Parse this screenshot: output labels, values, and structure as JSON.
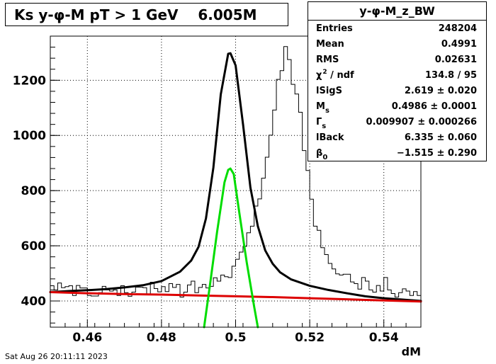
{
  "header": {
    "title": "Ks y-φ-M pT > 1 GeV    6.005M"
  },
  "stats": {
    "title": "y-φ-M_z_BW",
    "rows": [
      {
        "label": "Entries",
        "value": "248204"
      },
      {
        "label": "Mean",
        "value": "0.4991"
      },
      {
        "label": "RMS",
        "value": "0.02631"
      },
      {
        "label": "χ",
        "sup": "2",
        "label_rest": " / ndf",
        "value": "134.8 / 95"
      },
      {
        "label": "lSigS",
        "value": "2.619 ± 0.020"
      },
      {
        "label": "M",
        "sub": "s",
        "value": "0.4986 ± 0.0001"
      },
      {
        "label": "Γ",
        "sub": "s",
        "value": "0.009907 ± 0.000266"
      },
      {
        "label": "lBack",
        "value": "6.335 ± 0.060"
      },
      {
        "label": "β",
        "sub": "0",
        "value": "−1.515 ± 0.290"
      }
    ]
  },
  "footer": {
    "timestamp": "Sat Aug 26 20:11:11 2023"
  },
  "chart_data": {
    "type": "line",
    "xlabel": "dM",
    "ylabel": "",
    "xlim": [
      0.45,
      0.55
    ],
    "ylim": [
      305,
      1360
    ],
    "grid": true,
    "xticks": [
      0.46,
      0.48,
      0.5,
      0.52,
      0.54
    ],
    "xtick_labels": [
      "0.46",
      "0.48",
      "0.5",
      "0.52",
      "0.54"
    ],
    "yticks": [
      400,
      600,
      800,
      1000,
      1200
    ],
    "ytick_labels": [
      "400",
      "600",
      "800",
      "1000",
      "1200"
    ],
    "histogram": {
      "name": "y-φ-M_z_BW",
      "color": "#000000",
      "bin_lo": 0.45,
      "bin_width": 0.001,
      "values": [
        455,
        440,
        465,
        448,
        452,
        455,
        420,
        456,
        447,
        447,
        420,
        418,
        418,
        430,
        453,
        440,
        436,
        440,
        420,
        455,
        430,
        417,
        432,
        450,
        450,
        448,
        422,
        468,
        445,
        433,
        452,
        434,
        463,
        449,
        460,
        414,
        432,
        458,
        472,
        430,
        449,
        460,
        447,
        453,
        484,
        472,
        494,
        488,
        485,
        526,
        551,
        577,
        598,
        647,
        671,
        744,
        770,
        845,
        921,
        1001,
        1092,
        1203,
        1235,
        1322,
        1275,
        1185,
        1150,
        1084,
        945,
        873,
        769,
        671,
        656,
        593,
        568,
        536,
        516,
        498,
        494,
        497,
        497,
        469,
        463,
        443,
        485,
        472,
        440,
        432,
        456,
        436,
        485,
        440,
        427,
        414,
        430,
        444,
        436,
        420,
        434,
        420
      ]
    },
    "series": [
      {
        "role": "total-fit",
        "color": "#000000",
        "x": [
          0.45,
          0.455,
          0.46,
          0.465,
          0.47,
          0.475,
          0.48,
          0.485,
          0.488,
          0.49,
          0.492,
          0.494,
          0.496,
          0.498,
          0.4986,
          0.5,
          0.502,
          0.504,
          0.506,
          0.508,
          0.51,
          0.512,
          0.515,
          0.52,
          0.525,
          0.53,
          0.535,
          0.54,
          0.545,
          0.55
        ],
        "y": [
          432,
          436,
          439,
          443,
          449,
          457,
          472,
          506,
          546,
          596,
          699,
          883,
          1149,
          1296,
          1298,
          1254,
          1041,
          811,
          671,
          583,
          535,
          504,
          478,
          455,
          440,
          428,
          417,
          410,
          405,
          400
        ]
      },
      {
        "role": "background",
        "color": "#dd0000",
        "x": [
          0.45,
          0.46,
          0.47,
          0.48,
          0.49,
          0.5,
          0.51,
          0.52,
          0.53,
          0.54,
          0.55
        ],
        "y": [
          432,
          428,
          425,
          423,
          420,
          417,
          414,
          410,
          406,
          402,
          398
        ]
      },
      {
        "role": "signal",
        "color": "#00dd00",
        "x": [
          0.4915,
          0.493,
          0.495,
          0.497,
          0.498,
          0.4986,
          0.4995,
          0.501,
          0.503,
          0.505,
          0.506
        ],
        "y": [
          305,
          450,
          650,
          830,
          875,
          880,
          860,
          720,
          540,
          380,
          305
        ]
      }
    ]
  }
}
